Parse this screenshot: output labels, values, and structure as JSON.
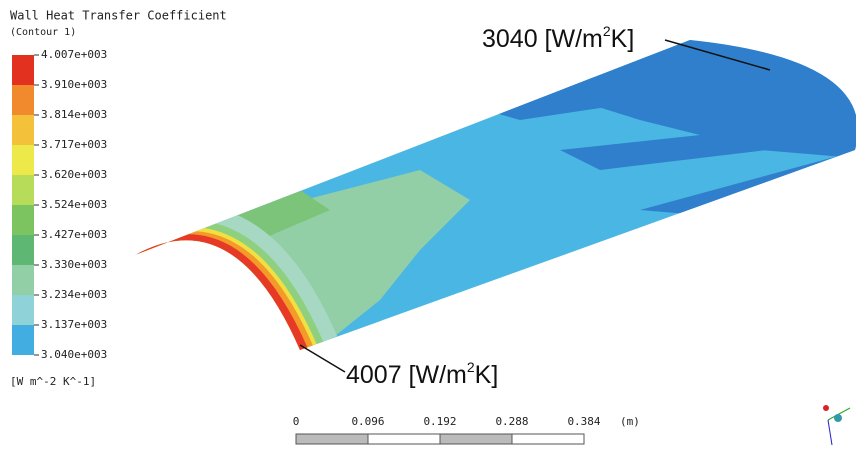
{
  "legend": {
    "title": "Wall Heat Transfer Coefficient",
    "subtitle": "(Contour 1)",
    "levels": [
      "4.007e+003",
      "3.910e+003",
      "3.814e+003",
      "3.717e+003",
      "3.620e+003",
      "3.524e+003",
      "3.427e+003",
      "3.330e+003",
      "3.234e+003",
      "3.137e+003",
      "3.040e+003"
    ],
    "unit": "[W m^-2 K^-1]"
  },
  "annotations": [
    {
      "parts": [
        "3040 [W/m",
        "2",
        "K]"
      ]
    },
    {
      "parts": [
        "4007 [W/m",
        "2",
        "K]"
      ]
    }
  ],
  "scale_bar": {
    "labels": [
      "0",
      "0.096",
      "0.192",
      "0.288",
      "0.384"
    ],
    "unit": "(m)"
  }
}
